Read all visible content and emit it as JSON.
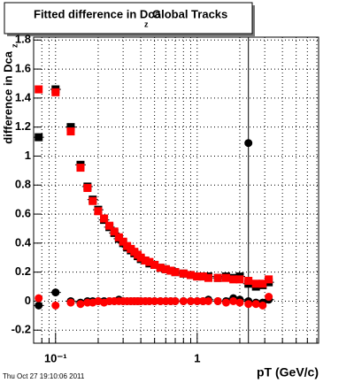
{
  "chart_data": {
    "type": "scatter",
    "title": "Fitted difference in Dca",
    "title_subscript": "z",
    "title_suffix": "Global Tracks",
    "y_label": "difference in Dca",
    "y_label_subscript": "z",
    "x_label": "pT (GeV/c)",
    "footer": "Thu Oct 27 19:10:06 2011",
    "log_x": true,
    "grid": true,
    "xlim": [
      0.07,
      7.2
    ],
    "ylim": [
      -0.29,
      1.82
    ],
    "xticks": [
      {
        "value": 0.1,
        "label": "10⁻¹"
      },
      1
    ],
    "x_minor_ticks": [
      0.08,
      0.09,
      0.2,
      0.3,
      0.4,
      0.5,
      0.6,
      0.7,
      0.8,
      0.9,
      2,
      3,
      4,
      5,
      6,
      7
    ],
    "yticks": [
      -0.2,
      0,
      0.2,
      0.4,
      0.6,
      0.8,
      1,
      1.2,
      1.4,
      1.6,
      1.8
    ],
    "vline": 2.3,
    "x": [
      0.076,
      0.1,
      0.128,
      0.15,
      0.168,
      0.183,
      0.2,
      0.22,
      0.24,
      0.26,
      0.28,
      0.3,
      0.32,
      0.34,
      0.36,
      0.38,
      0.4,
      0.43,
      0.46,
      0.5,
      0.55,
      0.6,
      0.65,
      0.7,
      0.8,
      0.9,
      1.0,
      1.1,
      1.2,
      1.4,
      1.6,
      1.8,
      2.0,
      2.3,
      2.6,
      2.9,
      3.2
    ],
    "series": [
      {
        "color": "#000000",
        "marker": "square",
        "values": [
          1.13,
          1.46,
          1.2,
          0.94,
          0.79,
          0.7,
          0.63,
          0.56,
          0.51,
          0.47,
          0.43,
          0.4,
          0.37,
          0.35,
          0.33,
          0.31,
          0.29,
          0.28,
          0.26,
          0.25,
          0.23,
          0.22,
          0.21,
          0.2,
          0.19,
          0.18,
          0.17,
          0.17,
          0.17,
          0.16,
          0.17,
          0.16,
          0.17,
          0.12,
          0.1,
          0.11,
          0.13
        ]
      },
      {
        "color": "#000000",
        "marker": "circle",
        "values": [
          -0.03,
          0.06,
          0,
          -0.01,
          0,
          0,
          0,
          0,
          0,
          0,
          0.01,
          0,
          0,
          0,
          0,
          0,
          0,
          0,
          0,
          0,
          0,
          0,
          0,
          0,
          0,
          0,
          0,
          0,
          0.01,
          0,
          0,
          0.02,
          0.01,
          0,
          -0.01,
          -0.01,
          0.01
        ]
      },
      {
        "color": "#ff0000",
        "marker": "square",
        "values": [
          1.46,
          1.44,
          1.17,
          0.92,
          0.78,
          0.69,
          0.62,
          0.57,
          0.52,
          0.48,
          0.44,
          0.41,
          0.38,
          0.36,
          0.34,
          0.32,
          0.3,
          0.28,
          0.27,
          0.25,
          0.23,
          0.22,
          0.21,
          0.2,
          0.19,
          0.18,
          0.17,
          0.17,
          0.16,
          0.16,
          0.16,
          0.15,
          0.15,
          0.14,
          0.12,
          0.12,
          0.15
        ]
      },
      {
        "color": "#ff0000",
        "marker": "circle",
        "values": [
          0.02,
          -0.03,
          -0.01,
          -0.02,
          -0.01,
          -0.01,
          0,
          -0.01,
          0,
          0,
          0,
          0,
          0,
          0,
          0,
          0,
          0,
          0,
          0,
          0,
          0,
          0,
          0,
          0,
          0,
          0,
          0,
          0,
          0,
          0,
          -0.01,
          0,
          -0.01,
          -0.02,
          -0.02,
          -0.03,
          0.03
        ]
      }
    ],
    "outlier": {
      "x": 2.3,
      "y": 1.09,
      "color": "#000000"
    }
  }
}
